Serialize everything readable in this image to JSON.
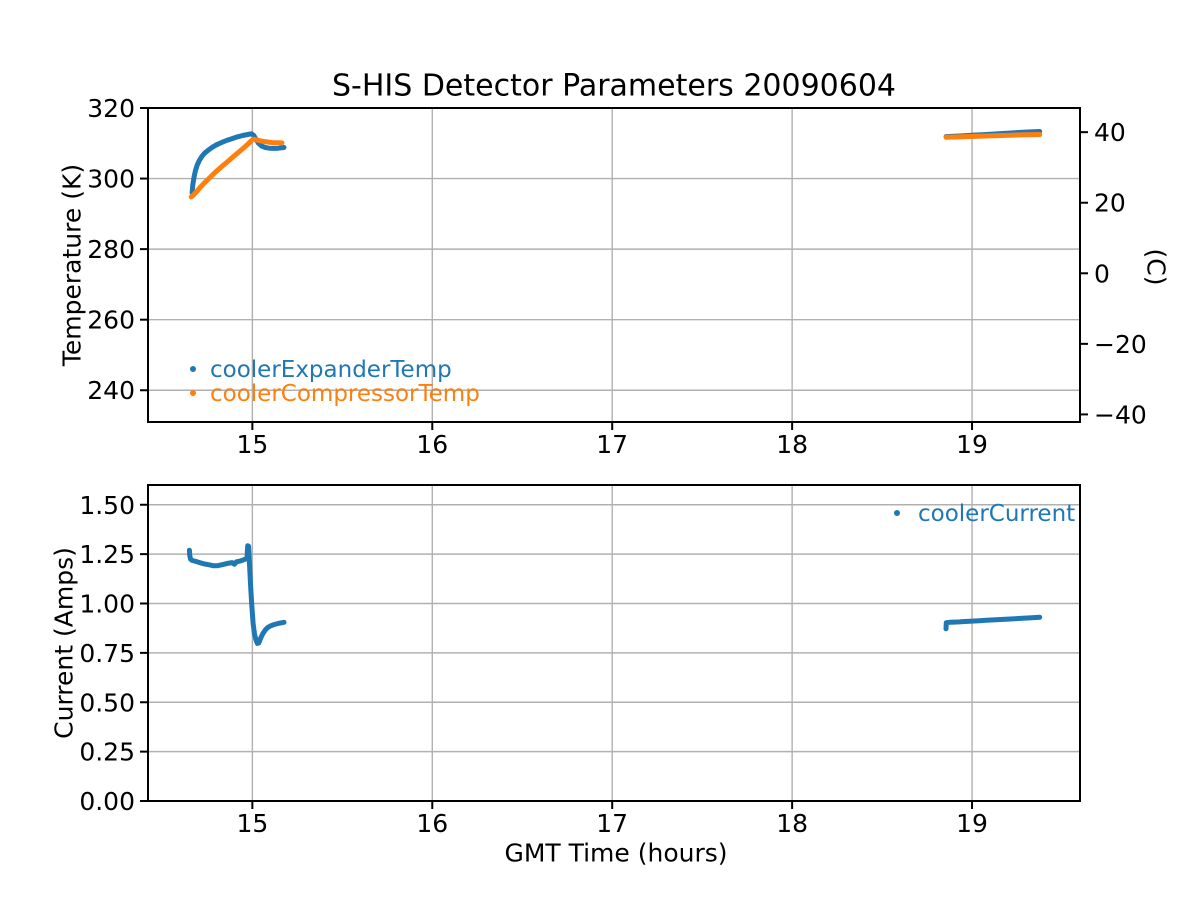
{
  "page": {
    "background": "#ffffff"
  },
  "style": {
    "series_blue": "#1f77b4",
    "series_orange": "#ff7f0e",
    "grid_color": "#b0b0b0",
    "spine_color": "#000000",
    "text_color": "#000000"
  },
  "chart_data": [
    {
      "type": "scatter",
      "title": "S-HIS Detector Parameters 20090604",
      "ylabel": "Temperature (K)",
      "ylabel_right": "(C)",
      "xlim": [
        14.42,
        19.6
      ],
      "ylim": [
        231,
        320
      ],
      "grid": true,
      "legend": {
        "location": "lower left",
        "entries": [
          "coolerExpanderTemp",
          "coolerCompressorTemp"
        ]
      },
      "xticks": [
        {
          "label": "15",
          "value": 15
        },
        {
          "label": "16",
          "value": 16
        },
        {
          "label": "17",
          "value": 17
        },
        {
          "label": "18",
          "value": 18
        },
        {
          "label": "19",
          "value": 19
        }
      ],
      "yticks": [
        {
          "label": "320",
          "value": 320
        },
        {
          "label": "300",
          "value": 300
        },
        {
          "label": "280",
          "value": 280
        },
        {
          "label": "260",
          "value": 260
        },
        {
          "label": "240",
          "value": 240
        }
      ],
      "yticks_right": [
        {
          "label": "40",
          "value": 313.15
        },
        {
          "label": "20",
          "value": 293.15
        },
        {
          "label": "0",
          "value": 273.15
        },
        {
          "label": "−20",
          "value": 253.15
        },
        {
          "label": "−40",
          "value": 233.15
        }
      ],
      "series": [
        {
          "name": "coolerExpanderTemp",
          "color": "#1f77b4",
          "segments": [
            [
              [
                14.665,
                296.0
              ],
              [
                14.669,
                298.2
              ],
              [
                14.676,
                300.5
              ],
              [
                14.684,
                302.3
              ],
              [
                14.694,
                303.9
              ],
              [
                14.706,
                305.2
              ],
              [
                14.72,
                306.3
              ],
              [
                14.737,
                307.3
              ],
              [
                14.756,
                308.1
              ],
              [
                14.778,
                308.9
              ],
              [
                14.802,
                309.6
              ],
              [
                14.828,
                310.2
              ],
              [
                14.856,
                310.8
              ],
              [
                14.886,
                311.3
              ],
              [
                14.916,
                311.8
              ],
              [
                14.946,
                312.2
              ],
              [
                14.974,
                312.5
              ],
              [
                14.996,
                312.7
              ],
              [
                15.008,
                312.2
              ],
              [
                15.02,
                311.1
              ],
              [
                15.034,
                310.0
              ],
              [
                15.052,
                309.2
              ],
              [
                15.072,
                308.8
              ],
              [
                15.094,
                308.6
              ],
              [
                15.118,
                308.55
              ],
              [
                15.144,
                308.6
              ],
              [
                15.176,
                308.8
              ]
            ],
            [
              [
                18.856,
                311.9
              ],
              [
                18.93,
                312.05
              ],
              [
                19.0,
                312.25
              ],
              [
                19.08,
                312.5
              ],
              [
                19.16,
                312.75
              ],
              [
                19.24,
                313.0
              ],
              [
                19.31,
                313.2
              ],
              [
                19.376,
                313.35
              ]
            ]
          ]
        },
        {
          "name": "coolerCompressorTemp",
          "color": "#ff7f0e",
          "segments": [
            [
              [
                14.66,
                294.8
              ],
              [
                14.672,
                295.3
              ],
              [
                14.69,
                296.3
              ],
              [
                14.712,
                297.6
              ],
              [
                14.738,
                299.0
              ],
              [
                14.766,
                300.4
              ],
              [
                14.796,
                301.9
              ],
              [
                14.828,
                303.3
              ],
              [
                14.86,
                304.7
              ],
              [
                14.892,
                306.1
              ],
              [
                14.922,
                307.4
              ],
              [
                14.95,
                308.6
              ],
              [
                14.974,
                309.7
              ],
              [
                14.992,
                310.6
              ],
              [
                15.004,
                311.15
              ],
              [
                15.018,
                311.05
              ],
              [
                15.036,
                310.8
              ],
              [
                15.058,
                310.55
              ],
              [
                15.084,
                310.35
              ],
              [
                15.112,
                310.2
              ],
              [
                15.14,
                310.15
              ],
              [
                15.164,
                310.1
              ]
            ],
            [
              [
                18.856,
                311.7
              ],
              [
                18.94,
                311.85
              ],
              [
                19.03,
                312.0
              ],
              [
                19.12,
                312.15
              ],
              [
                19.21,
                312.3
              ],
              [
                19.3,
                312.4
              ],
              [
                19.376,
                312.5
              ]
            ]
          ]
        }
      ]
    },
    {
      "type": "scatter",
      "title": "",
      "xlabel": "GMT Time (hours)",
      "ylabel": "Current (Amps)",
      "xlim": [
        14.42,
        19.6
      ],
      "ylim": [
        0,
        1.6
      ],
      "grid": true,
      "legend": {
        "location": "upper right",
        "entries": [
          "coolerCurrent"
        ]
      },
      "xticks": [
        {
          "label": "15",
          "value": 15
        },
        {
          "label": "16",
          "value": 16
        },
        {
          "label": "17",
          "value": 17
        },
        {
          "label": "18",
          "value": 18
        },
        {
          "label": "19",
          "value": 19
        }
      ],
      "yticks": [
        {
          "label": "1.50",
          "value": 1.5
        },
        {
          "label": "1.25",
          "value": 1.25
        },
        {
          "label": "1.00",
          "value": 1.0
        },
        {
          "label": "0.75",
          "value": 0.75
        },
        {
          "label": "0.50",
          "value": 0.5
        },
        {
          "label": "0.25",
          "value": 0.25
        },
        {
          "label": "0.00",
          "value": 0.0
        }
      ],
      "series": [
        {
          "name": "coolerCurrent",
          "color": "#1f77b4",
          "segments": [
            [
              [
                14.65,
                1.27
              ],
              [
                14.652,
                1.245
              ],
              [
                14.656,
                1.225
              ],
              [
                14.665,
                1.218
              ],
              [
                14.685,
                1.213
              ],
              [
                14.71,
                1.206
              ],
              [
                14.735,
                1.2
              ],
              [
                14.76,
                1.196
              ],
              [
                14.785,
                1.191
              ],
              [
                14.81,
                1.192
              ],
              [
                14.835,
                1.197
              ],
              [
                14.862,
                1.203
              ],
              [
                14.888,
                1.207
              ],
              [
                14.9,
                1.199
              ],
              [
                14.912,
                1.211
              ],
              [
                14.928,
                1.214
              ],
              [
                14.946,
                1.219
              ],
              [
                14.962,
                1.225
              ],
              [
                14.97,
                1.23
              ],
              [
                14.974,
                1.292
              ],
              [
                14.979,
                1.29
              ],
              [
                14.984,
                1.2
              ],
              [
                14.99,
                1.09
              ],
              [
                14.997,
                0.99
              ],
              [
                15.004,
                0.9
              ],
              [
                15.012,
                0.845
              ],
              [
                15.02,
                0.815
              ],
              [
                15.028,
                0.798
              ],
              [
                15.036,
                0.8
              ],
              [
                15.046,
                0.824
              ],
              [
                15.058,
                0.847
              ],
              [
                15.072,
                0.866
              ],
              [
                15.086,
                0.879
              ],
              [
                15.102,
                0.887
              ],
              [
                15.12,
                0.893
              ],
              [
                15.14,
                0.898
              ],
              [
                15.158,
                0.902
              ],
              [
                15.176,
                0.905
              ]
            ],
            [
              [
                18.855,
                0.872
              ],
              [
                18.857,
                0.903
              ],
              [
                18.875,
                0.905
              ],
              [
                18.9,
                0.906
              ],
              [
                18.93,
                0.907
              ],
              [
                18.96,
                0.909
              ],
              [
                19.0,
                0.911
              ],
              [
                19.04,
                0.913
              ],
              [
                19.08,
                0.915
              ],
              [
                19.12,
                0.917
              ],
              [
                19.16,
                0.919
              ],
              [
                19.2,
                0.921
              ],
              [
                19.24,
                0.923
              ],
              [
                19.28,
                0.925
              ],
              [
                19.32,
                0.927
              ],
              [
                19.376,
                0.93
              ]
            ]
          ]
        }
      ]
    }
  ]
}
